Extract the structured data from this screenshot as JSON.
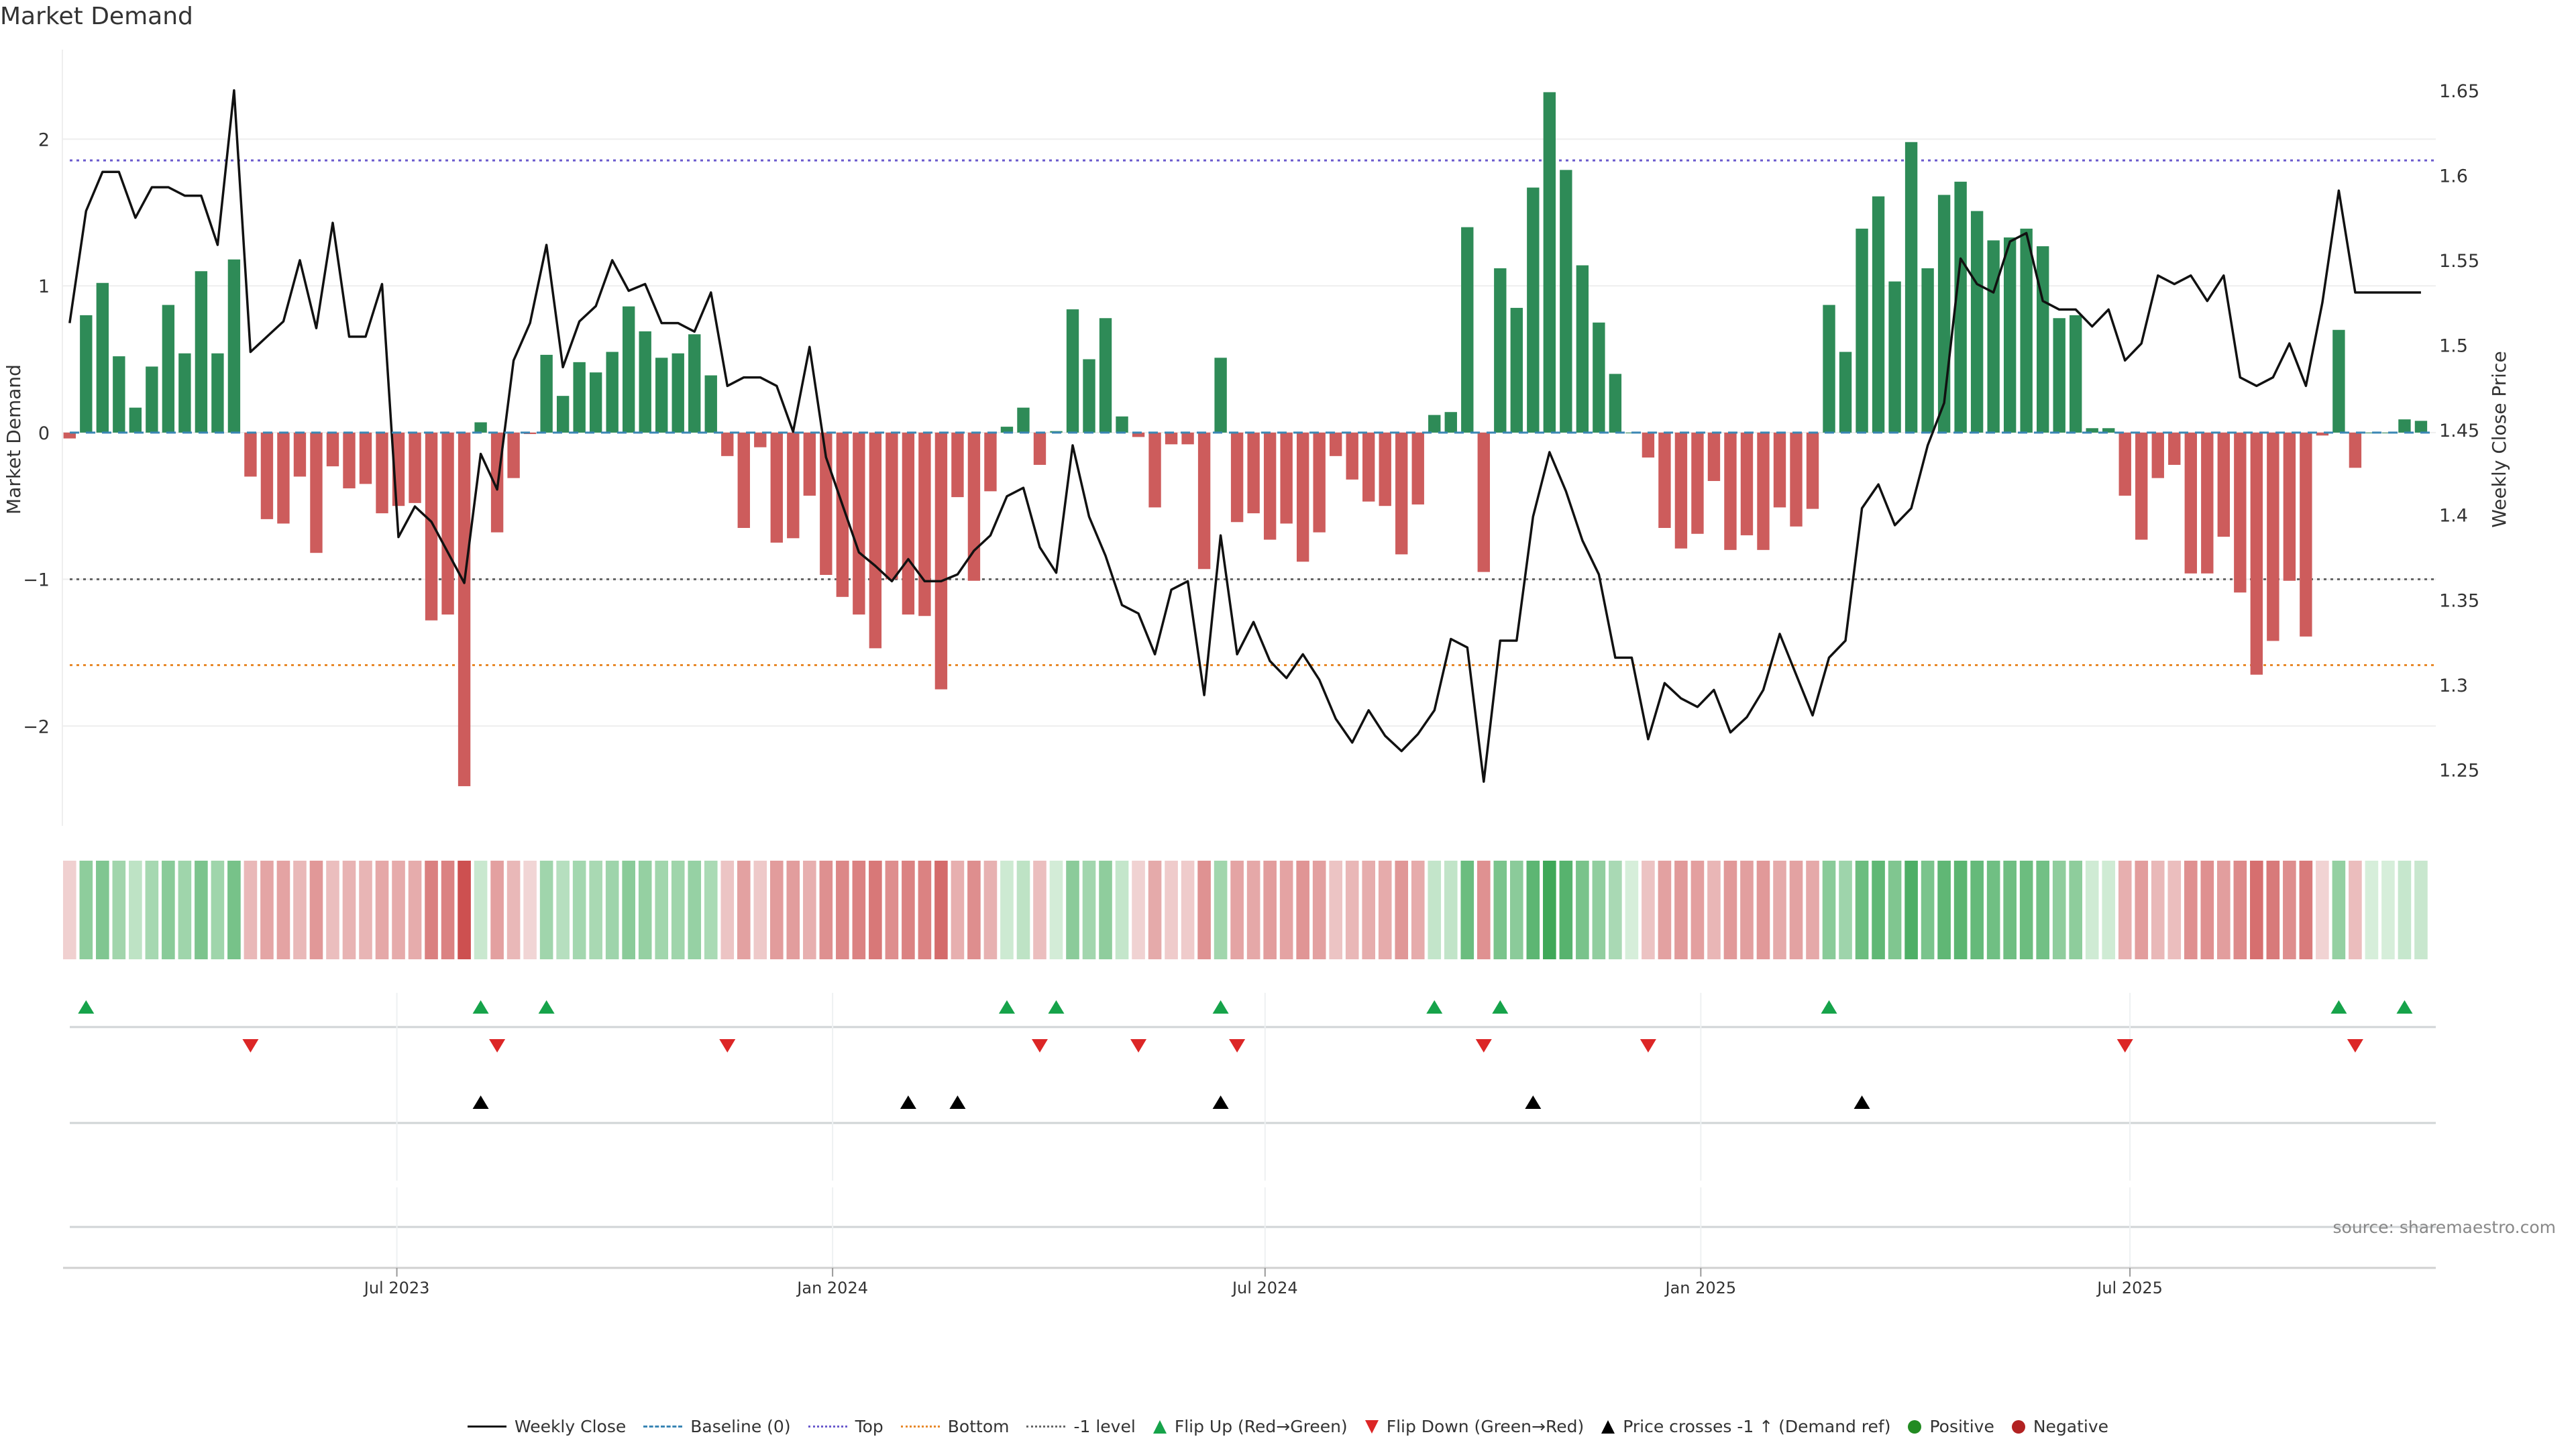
{
  "title": "Market Demand",
  "source": "source: sharemaestro.com",
  "legend": [
    {
      "label": "Weekly Close",
      "kind": "line-solid",
      "color": "#111111"
    },
    {
      "label": "Baseline (0)",
      "kind": "line-dashed",
      "color": "#3a86b4"
    },
    {
      "label": "Top",
      "kind": "line-dotted",
      "color": "#6a5acd"
    },
    {
      "label": "Bottom",
      "kind": "line-dotted",
      "color": "#e8892a"
    },
    {
      "label": "-1 level",
      "kind": "line-dotted",
      "color": "#666666"
    },
    {
      "label": "Flip Up (Red→Green)",
      "kind": "tri-up",
      "color": "#16a34a"
    },
    {
      "label": "Flip Down (Green→Red)",
      "kind": "tri-down",
      "color": "#dc2626"
    },
    {
      "label": "Price crosses -1 ↑ (Demand ref)",
      "kind": "tri-up",
      "color": "#000000"
    },
    {
      "label": "Positive",
      "kind": "dot",
      "color": "#228b22"
    },
    {
      "label": "Negative",
      "kind": "dot",
      "color": "#b22222"
    }
  ],
  "colors": {
    "positive_bar": "#2e8b57",
    "negative_bar": "#cd5c5c",
    "price_line": "#111111"
  },
  "chart_data": {
    "type": "bar",
    "title": "Market Demand",
    "xlabel": "",
    "ylabel": "Market Demand",
    "y2label": "Weekly Close Price",
    "ylim": [
      -2.68,
      2.61
    ],
    "y2lim": [
      1.217,
      1.674
    ],
    "yticks": [
      -2,
      -1,
      0,
      1,
      2
    ],
    "yticklabels": [
      "−2",
      "−1",
      "0",
      "1",
      "2"
    ],
    "y2ticks": [
      1.25,
      1.3,
      1.35,
      1.4,
      1.45,
      1.5,
      1.55,
      1.6,
      1.65
    ],
    "y2ticklabels": [
      "1.25",
      "1.3",
      "1.35",
      "1.4",
      "1.45",
      "1.5",
      "1.55",
      "1.6",
      "1.65"
    ],
    "xticks": [
      {
        "label": "Jul 2023",
        "week_index": 19.9
      },
      {
        "label": "Jan 2024",
        "week_index": 46.4
      },
      {
        "label": "Jul 2024",
        "week_index": 72.7
      },
      {
        "label": "Jan 2025",
        "week_index": 99.2
      },
      {
        "label": "Jul 2025",
        "week_index": 125.3
      }
    ],
    "reference_lines": {
      "baseline": 0,
      "top": 1.855,
      "bottom": -1.585,
      "minus_one": -1.0
    },
    "grid": true,
    "legend_position": "bottom",
    "demand": [
      -0.04,
      0.8,
      1.02,
      0.52,
      0.17,
      0.45,
      0.87,
      0.54,
      1.1,
      0.54,
      1.18,
      -0.3,
      -0.59,
      -0.62,
      -0.3,
      -0.82,
      -0.23,
      -0.38,
      -0.35,
      -0.55,
      -0.5,
      -0.48,
      -1.28,
      -1.24,
      -2.41,
      0.07,
      -0.68,
      -0.31,
      -0.01,
      0.53,
      0.25,
      0.48,
      0.41,
      0.55,
      0.86,
      0.69,
      0.51,
      0.54,
      0.67,
      0.39,
      -0.16,
      -0.65,
      -0.1,
      -0.75,
      -0.72,
      -0.43,
      -0.97,
      -1.12,
      -1.24,
      -1.47,
      -1.0,
      -1.24,
      -1.25,
      -1.75,
      -0.44,
      -1.01,
      -0.4,
      0.04,
      0.17,
      -0.22,
      0.01,
      0.84,
      0.5,
      0.78,
      0.11,
      -0.03,
      -0.51,
      -0.08,
      -0.08,
      -0.93,
      0.51,
      -0.61,
      -0.55,
      -0.73,
      -0.62,
      -0.88,
      -0.68,
      -0.16,
      -0.32,
      -0.47,
      -0.5,
      -0.83,
      -0.49,
      0.12,
      0.14,
      1.4,
      -0.95,
      1.12,
      0.85,
      1.67,
      2.32,
      1.79,
      1.14,
      0.75,
      0.4,
      0.0,
      -0.17,
      -0.65,
      -0.79,
      -0.69,
      -0.33,
      -0.8,
      -0.7,
      -0.8,
      -0.51,
      -0.64,
      -0.52,
      0.87,
      0.55,
      1.39,
      1.61,
      1.03,
      1.98,
      1.12,
      1.62,
      1.71,
      1.51,
      1.31,
      1.33,
      1.39,
      1.27,
      0.78,
      0.8,
      0.03,
      0.03,
      -0.43,
      -0.73,
      -0.31,
      -0.22,
      -0.96,
      -0.96,
      -0.71,
      -1.09,
      -1.65,
      -1.42,
      -1.01,
      -1.39,
      -0.02,
      0.7,
      -0.24,
      0.0,
      0.0,
      0.09,
      0.08
    ],
    "weekly_close": [
      1.513,
      1.579,
      1.602,
      1.602,
      1.575,
      1.593,
      1.593,
      1.588,
      1.588,
      1.559,
      1.65,
      1.496,
      1.505,
      1.514,
      1.55,
      1.51,
      1.572,
      1.505,
      1.505,
      1.536,
      1.387,
      1.405,
      1.396,
      1.378,
      1.36,
      1.436,
      1.415,
      1.491,
      1.513,
      1.559,
      1.487,
      1.514,
      1.523,
      1.55,
      1.532,
      1.536,
      1.513,
      1.513,
      1.508,
      1.531,
      1.476,
      1.481,
      1.481,
      1.476,
      1.449,
      1.499,
      1.434,
      1.406,
      1.378,
      1.37,
      1.361,
      1.374,
      1.361,
      1.361,
      1.365,
      1.379,
      1.388,
      1.411,
      1.416,
      1.381,
      1.366,
      1.441,
      1.399,
      1.376,
      1.347,
      1.342,
      1.318,
      1.356,
      1.361,
      1.294,
      1.388,
      1.318,
      1.337,
      1.314,
      1.304,
      1.318,
      1.303,
      1.28,
      1.266,
      1.285,
      1.27,
      1.261,
      1.271,
      1.285,
      1.327,
      1.322,
      1.243,
      1.326,
      1.326,
      1.399,
      1.437,
      1.414,
      1.385,
      1.365,
      1.316,
      1.316,
      1.268,
      1.301,
      1.292,
      1.287,
      1.297,
      1.272,
      1.281,
      1.297,
      1.33,
      1.306,
      1.282,
      1.316,
      1.326,
      1.404,
      1.418,
      1.394,
      1.404,
      1.441,
      1.466,
      1.551,
      1.536,
      1.531,
      1.561,
      1.566,
      1.526,
      1.521,
      1.521,
      1.511,
      1.521,
      1.491,
      1.501,
      1.541,
      1.536,
      1.541,
      1.526,
      1.541,
      1.481,
      1.476,
      1.481,
      1.501,
      1.476,
      1.525,
      1.591,
      1.531,
      1.531,
      1.531,
      1.531,
      1.531
    ],
    "flip_up_weeks": [
      1,
      25,
      29,
      57,
      60,
      70,
      83,
      87,
      107,
      138,
      142
    ],
    "flip_down_weeks": [
      11,
      26,
      40,
      59,
      65,
      71,
      86,
      96,
      125,
      139
    ],
    "price_cross_weeks": [
      25,
      51,
      54,
      70,
      89,
      109
    ]
  }
}
